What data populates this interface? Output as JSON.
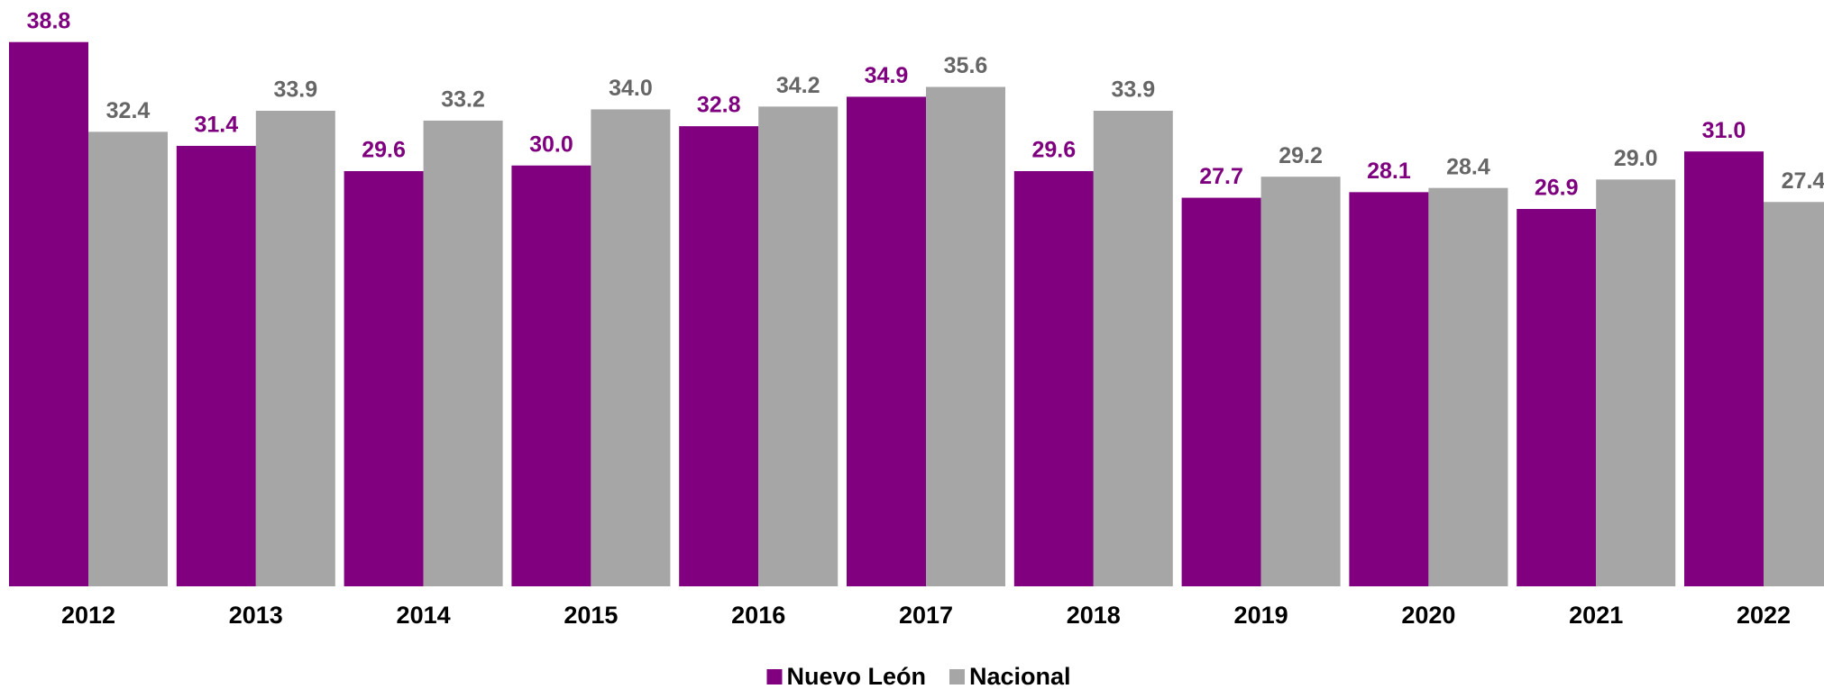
{
  "chart_data": {
    "type": "bar",
    "categories": [
      "2012",
      "2013",
      "2014",
      "2015",
      "2016",
      "2017",
      "2018",
      "2019",
      "2020",
      "2021",
      "2022"
    ],
    "series": [
      {
        "name": "Nuevo León",
        "color": "#800080",
        "values": [
          38.8,
          31.4,
          29.6,
          30.0,
          32.8,
          34.9,
          29.6,
          27.7,
          28.1,
          26.9,
          31.0
        ],
        "value_labels": [
          "38.8",
          "31.4",
          "29.6",
          "30.0",
          "32.8",
          "34.9",
          "29.6",
          "27.7",
          "28.1",
          "26.9",
          "31.0"
        ]
      },
      {
        "name": "Nacional",
        "color": "#a6a6a6",
        "values": [
          32.4,
          33.9,
          33.2,
          34.0,
          34.2,
          35.6,
          33.9,
          29.2,
          28.4,
          29.0,
          27.4
        ],
        "value_labels": [
          "32.4",
          "33.9",
          "33.2",
          "34.0",
          "34.2",
          "35.6",
          "33.9",
          "29.2",
          "28.4",
          "29.0",
          "27.4"
        ]
      }
    ],
    "ylim": [
      0,
      40
    ],
    "legend": "bottom"
  }
}
